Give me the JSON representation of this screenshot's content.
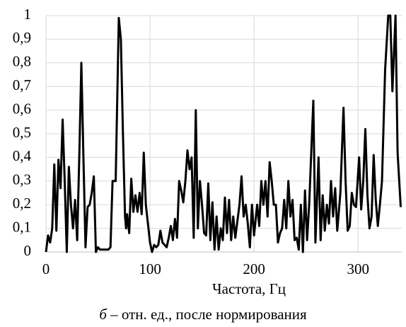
{
  "chart_data": {
    "type": "line",
    "xlabel": "Частота, Гц",
    "caption": [
      "б",
      " – отн. ед., после нормирования"
    ],
    "x": [
      0,
      2,
      4,
      6,
      8,
      10,
      12,
      14,
      16,
      18,
      20,
      22,
      24,
      26,
      28,
      30,
      32,
      34,
      36,
      38,
      40,
      42,
      44,
      46,
      48,
      50,
      52,
      56,
      60,
      62,
      64,
      67,
      70,
      72,
      74,
      76,
      77,
      78,
      80,
      82,
      84,
      86,
      88,
      90,
      92,
      94,
      96,
      98,
      100,
      102,
      104,
      106,
      108,
      110,
      112,
      116,
      118,
      120,
      122,
      124,
      126,
      128,
      130,
      132,
      134,
      136,
      138,
      140,
      142,
      144,
      146,
      148,
      150,
      152,
      154,
      156,
      158,
      160,
      162,
      164,
      166,
      168,
      170,
      172,
      174,
      176,
      178,
      180,
      182,
      186,
      188,
      190,
      192,
      194,
      196,
      198,
      200,
      203,
      205,
      207,
      209,
      211,
      213,
      215,
      217,
      219,
      221,
      223,
      225,
      227,
      229,
      231,
      233,
      235,
      237,
      239,
      241,
      243,
      245,
      247,
      249,
      251,
      253,
      257,
      259,
      262,
      264,
      266,
      268,
      270,
      272,
      274,
      276,
      278,
      280,
      283,
      286,
      288,
      290,
      292,
      294,
      296,
      298,
      301,
      303,
      305,
      307,
      309,
      311,
      313,
      315,
      317,
      319,
      321,
      323,
      326,
      329,
      331,
      333,
      336,
      338,
      341
    ],
    "series": [
      {
        "color": "#000000",
        "values": [
          0,
          0.07,
          0.04,
          0.1,
          0.37,
          0.09,
          0.39,
          0.27,
          0.56,
          0.3,
          0.0,
          0.36,
          0.2,
          0.1,
          0.22,
          0.05,
          0.4,
          0.8,
          0.4,
          0.02,
          0.19,
          0.2,
          0.25,
          0.32,
          0.0,
          0.02,
          0.01,
          0.01,
          0.01,
          0.02,
          0.3,
          0.3,
          0.99,
          0.9,
          0.5,
          0.15,
          0.1,
          0.16,
          0.08,
          0.31,
          0.17,
          0.24,
          0.17,
          0.25,
          0.16,
          0.42,
          0.2,
          0.12,
          0.04,
          0.0,
          0.03,
          0.02,
          0.03,
          0.09,
          0.04,
          0.02,
          0.06,
          0.11,
          0.05,
          0.14,
          0.06,
          0.3,
          0.26,
          0.21,
          0.3,
          0.43,
          0.35,
          0.4,
          0.06,
          0.6,
          0.1,
          0.3,
          0.2,
          0.08,
          0.07,
          0.29,
          0.05,
          0.21,
          0.01,
          0.15,
          0.01,
          0.1,
          0.05,
          0.23,
          0.08,
          0.22,
          0.05,
          0.15,
          0.06,
          0.2,
          0.32,
          0.15,
          0.2,
          0.12,
          0.02,
          0.2,
          0.07,
          0.2,
          0.11,
          0.3,
          0.2,
          0.3,
          0.15,
          0.38,
          0.3,
          0.2,
          0.2,
          0.04,
          0.08,
          0.1,
          0.22,
          0.1,
          0.3,
          0.15,
          0.22,
          0.05,
          0.06,
          0.01,
          0.2,
          0.0,
          0.26,
          0.05,
          0.2,
          0.64,
          0.04,
          0.4,
          0.05,
          0.24,
          0.09,
          0.2,
          0.12,
          0.3,
          0.15,
          0.27,
          0.09,
          0.25,
          0.61,
          0.3,
          0.09,
          0.11,
          0.25,
          0.2,
          0.19,
          0.4,
          0.18,
          0.3,
          0.52,
          0.24,
          0.1,
          0.15,
          0.41,
          0.22,
          0.11,
          0.2,
          0.3,
          0.77,
          1.0,
          1.0,
          0.68,
          1.0,
          0.42,
          0.19
        ]
      }
    ],
    "xlim": [
      0,
      342
    ],
    "ylim": [
      0,
      1
    ],
    "xticks": [
      0,
      100,
      200,
      300
    ],
    "yticks": [
      0,
      {
        "value": 0.1,
        "label": "0,1"
      },
      {
        "value": 0.2,
        "label": "0,2"
      },
      {
        "value": 0.3,
        "label": "0,3"
      },
      {
        "value": 0.4,
        "label": "0,4"
      },
      {
        "value": 0.5,
        "label": "0,5"
      },
      {
        "value": 0.6,
        "label": "0,6"
      },
      {
        "value": 0.7,
        "label": "0,7"
      },
      {
        "value": 0.8,
        "label": "0,8"
      },
      {
        "value": 0.9,
        "label": "0,9"
      },
      1
    ],
    "grid": true
  }
}
